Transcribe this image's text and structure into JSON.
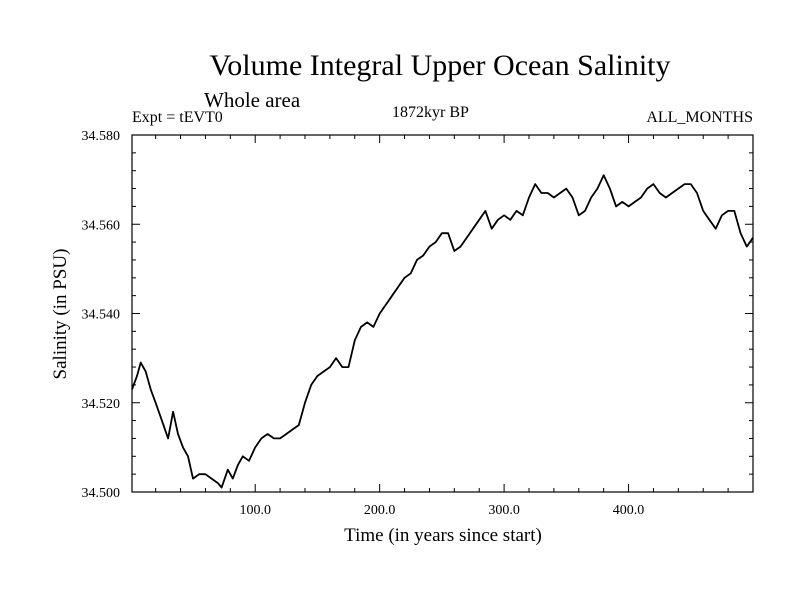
{
  "chart_data": {
    "type": "line",
    "title": "Volume Integral Upper Ocean Salinity",
    "subtitle": "Whole area",
    "annotations": {
      "left": "Expt = tEVT0",
      "center": "1872kyr BP",
      "right": "ALL_MONTHS"
    },
    "xlabel": "Time (in years since start)",
    "ylabel": "Salinity (in PSU)",
    "xlim": [
      1,
      500
    ],
    "ylim": [
      34.5,
      34.58
    ],
    "xticks": [
      {
        "value": 100,
        "label": "100.0"
      },
      {
        "value": 200,
        "label": "200.0"
      },
      {
        "value": 300,
        "label": "300.0"
      },
      {
        "value": 400,
        "label": "400.0"
      }
    ],
    "yticks": [
      {
        "value": 34.5,
        "label": "34.500"
      },
      {
        "value": 34.52,
        "label": "34.520"
      },
      {
        "value": 34.54,
        "label": "34.540"
      },
      {
        "value": 34.56,
        "label": "34.560"
      },
      {
        "value": 34.58,
        "label": "34.580"
      }
    ],
    "grid": false,
    "series": [
      {
        "name": "Salinity",
        "x": [
          1,
          5,
          8,
          12,
          16,
          20,
          25,
          30,
          34,
          38,
          42,
          46,
          50,
          55,
          60,
          65,
          70,
          73,
          78,
          82,
          86,
          90,
          95,
          100,
          105,
          110,
          115,
          120,
          125,
          130,
          135,
          140,
          145,
          150,
          155,
          160,
          165,
          170,
          175,
          180,
          185,
          190,
          195,
          200,
          205,
          210,
          215,
          220,
          225,
          230,
          235,
          240,
          245,
          250,
          255,
          260,
          265,
          270,
          275,
          280,
          285,
          290,
          295,
          300,
          305,
          310,
          315,
          320,
          325,
          330,
          335,
          340,
          345,
          350,
          355,
          360,
          365,
          370,
          375,
          380,
          385,
          390,
          395,
          400,
          405,
          410,
          415,
          420,
          425,
          430,
          435,
          440,
          445,
          450,
          455,
          460,
          465,
          470,
          475,
          480,
          485,
          490,
          495,
          500
        ],
        "values": [
          34.523,
          34.526,
          34.529,
          34.527,
          34.523,
          34.52,
          34.516,
          34.512,
          34.518,
          34.513,
          34.51,
          34.508,
          34.503,
          34.504,
          34.504,
          34.503,
          34.502,
          34.501,
          34.505,
          34.503,
          34.506,
          34.508,
          34.507,
          34.51,
          34.512,
          34.513,
          34.512,
          34.512,
          34.513,
          34.514,
          34.515,
          34.52,
          34.524,
          34.526,
          34.527,
          34.528,
          34.53,
          34.528,
          34.528,
          34.534,
          34.537,
          34.538,
          34.537,
          34.54,
          34.542,
          34.544,
          34.546,
          34.548,
          34.549,
          34.552,
          34.553,
          34.555,
          34.556,
          34.558,
          34.558,
          34.554,
          34.555,
          34.557,
          34.559,
          34.561,
          34.563,
          34.559,
          34.561,
          34.562,
          34.561,
          34.563,
          34.562,
          34.566,
          34.569,
          34.567,
          34.567,
          34.566,
          34.567,
          34.568,
          34.566,
          34.562,
          34.563,
          34.566,
          34.568,
          34.571,
          34.568,
          34.564,
          34.565,
          34.564,
          34.565,
          34.566,
          34.568,
          34.569,
          34.567,
          34.566,
          34.567,
          34.568,
          34.569,
          34.569,
          34.567,
          34.563,
          34.561,
          34.559,
          34.562,
          34.563,
          34.563,
          34.558,
          34.555,
          34.557
        ]
      }
    ]
  }
}
